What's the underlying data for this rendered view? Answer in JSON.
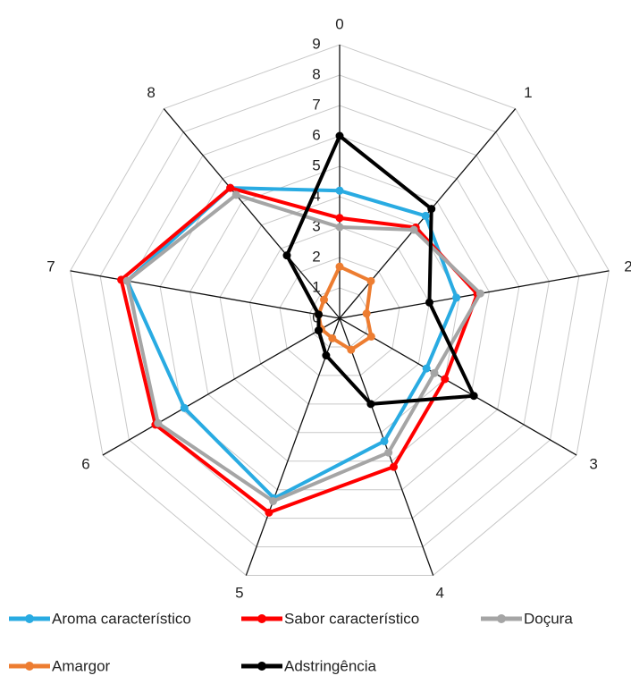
{
  "chart_data": {
    "type": "radar",
    "categories": [
      "0",
      "1",
      "2",
      "3",
      "4",
      "5",
      "6",
      "7",
      "8"
    ],
    "ylim": [
      0,
      9
    ],
    "yticks": [
      0,
      1,
      2,
      3,
      4,
      5,
      6,
      7,
      8,
      9
    ],
    "grid": true,
    "series": [
      {
        "name": "Aroma característico",
        "color": "#29abe2",
        "values": [
          4.2,
          4.4,
          3.9,
          3.3,
          4.3,
          6.3,
          5.9,
          7.1,
          5.6
        ]
      },
      {
        "name": "Sabor característico",
        "color": "#ff0000",
        "values": [
          3.3,
          3.9,
          4.6,
          4.0,
          5.2,
          6.8,
          7.0,
          7.3,
          5.6
        ]
      },
      {
        "name": "Doçura",
        "color": "#a5a5a5",
        "values": [
          3.0,
          3.8,
          4.7,
          3.6,
          4.7,
          6.4,
          6.9,
          7.1,
          5.3
        ]
      },
      {
        "name": "Amargor",
        "color": "#ed7d31",
        "values": [
          1.7,
          1.6,
          0.9,
          1.2,
          1.1,
          0.7,
          0.7,
          0.7,
          0.8
        ]
      },
      {
        "name": "Adstringência",
        "color": "#000000",
        "values": [
          6.0,
          4.7,
          3.0,
          5.1,
          3.0,
          1.3,
          0.8,
          0.7,
          2.7
        ]
      }
    ]
  }
}
